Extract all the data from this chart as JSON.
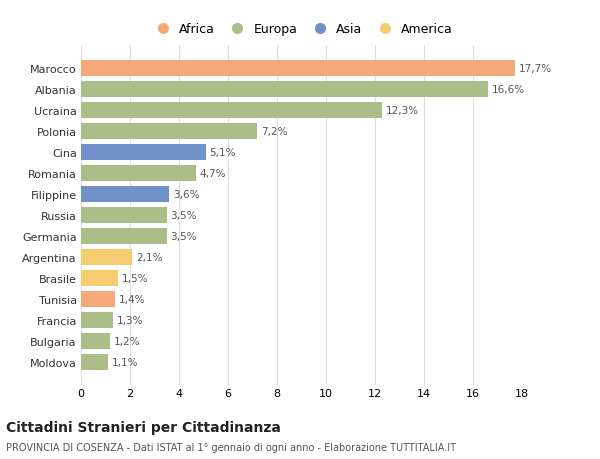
{
  "countries": [
    "Marocco",
    "Albania",
    "Ucraina",
    "Polonia",
    "Cina",
    "Romania",
    "Filippine",
    "Russia",
    "Germania",
    "Argentina",
    "Brasile",
    "Tunisia",
    "Francia",
    "Bulgaria",
    "Moldova"
  ],
  "values": [
    17.7,
    16.6,
    12.3,
    7.2,
    5.1,
    4.7,
    3.6,
    3.5,
    3.5,
    2.1,
    1.5,
    1.4,
    1.3,
    1.2,
    1.1
  ],
  "continents": [
    "Africa",
    "Europa",
    "Europa",
    "Europa",
    "Asia",
    "Europa",
    "Asia",
    "Europa",
    "Europa",
    "America",
    "America",
    "Africa",
    "Europa",
    "Europa",
    "Europa"
  ],
  "colors": {
    "Africa": "#F5A878",
    "Europa": "#ABBE88",
    "Asia": "#7090C8",
    "America": "#F5CC70"
  },
  "legend_order": [
    "Africa",
    "Europa",
    "Asia",
    "America"
  ],
  "xlim": [
    0,
    18
  ],
  "xticks": [
    0,
    2,
    4,
    6,
    8,
    10,
    12,
    14,
    16,
    18
  ],
  "title": "Cittadini Stranieri per Cittadinanza",
  "subtitle": "PROVINCIA DI COSENZA - Dati ISTAT al 1° gennaio di ogni anno - Elaborazione TUTTITALIA.IT",
  "background_color": "#ffffff",
  "grid_color": "#dddddd",
  "label_color": "#555555"
}
